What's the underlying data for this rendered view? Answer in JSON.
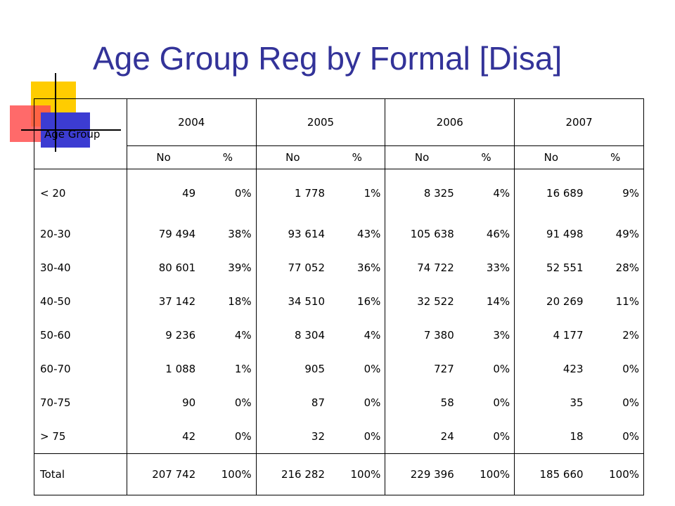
{
  "title": "Age Group Reg by Formal [Disa]",
  "table": {
    "age_group_label": "Age Group",
    "years": [
      "2004",
      "2005",
      "2006",
      "2007"
    ],
    "sub_no": "No",
    "sub_pct": "%",
    "rows": [
      {
        "label": "< 20",
        "cells": [
          "49",
          "0%",
          "1 778",
          "1%",
          "8 325",
          "4%",
          "16 689",
          "9%"
        ]
      },
      {
        "label": "20-30",
        "cells": [
          "79 494",
          "38%",
          "93 614",
          "43%",
          "105 638",
          "46%",
          "91 498",
          "49%"
        ]
      },
      {
        "label": "30-40",
        "cells": [
          "80 601",
          "39%",
          "77 052",
          "36%",
          "74 722",
          "33%",
          "52 551",
          "28%"
        ]
      },
      {
        "label": "40-50",
        "cells": [
          "37 142",
          "18%",
          "34 510",
          "16%",
          "32 522",
          "14%",
          "20 269",
          "11%"
        ]
      },
      {
        "label": "50-60",
        "cells": [
          "9 236",
          "4%",
          "8 304",
          "4%",
          "7 380",
          "3%",
          "4 177",
          "2%"
        ]
      },
      {
        "label": "60-70",
        "cells": [
          "1 088",
          "1%",
          "905",
          "0%",
          "727",
          "0%",
          "423",
          "0%"
        ]
      },
      {
        "label": "70-75",
        "cells": [
          "90",
          "0%",
          "87",
          "0%",
          "58",
          "0%",
          "35",
          "0%"
        ]
      },
      {
        "label": "> 75",
        "cells": [
          "42",
          "0%",
          "32",
          "0%",
          "24",
          "0%",
          "18",
          "0%"
        ]
      }
    ],
    "total": {
      "label": "Total",
      "cells": [
        "207 742",
        "100%",
        "216 282",
        "100%",
        "229 396",
        "100%",
        "185 660",
        "100%"
      ]
    }
  },
  "colors": {
    "title": "#333399",
    "accent_yellow": "#ffcc00",
    "accent_red": "#ff5050",
    "accent_blue": "#3c3cd2"
  }
}
